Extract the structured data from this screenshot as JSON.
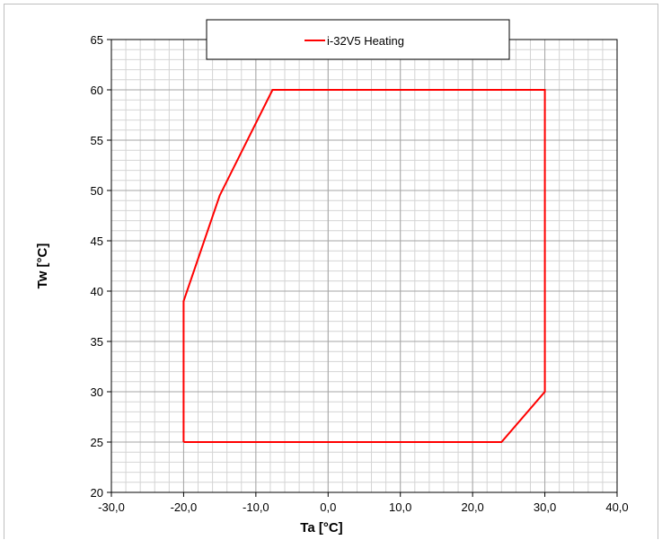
{
  "chart_data": {
    "type": "line",
    "xlabel": "Ta [°C]",
    "ylabel": "Tw [°C]",
    "xlim": [
      -30,
      40
    ],
    "ylim": [
      20,
      65
    ],
    "x_ticks": [
      "-30,0",
      "-20,0",
      "-10,0",
      "0,0",
      "10,0",
      "20,0",
      "30,0",
      "40,0"
    ],
    "y_ticks": [
      "20",
      "25",
      "30",
      "35",
      "40",
      "45",
      "50",
      "55",
      "60",
      "65"
    ],
    "grid": true,
    "legend_position": "top-center",
    "series": [
      {
        "name": "i-32V5 Heating",
        "color": "#ff0000",
        "x": [
          -20,
          -20,
          -15,
          -7.7,
          30,
          30,
          24,
          -20
        ],
        "y": [
          25,
          39,
          49.5,
          60,
          60,
          30,
          25,
          25
        ]
      }
    ]
  }
}
